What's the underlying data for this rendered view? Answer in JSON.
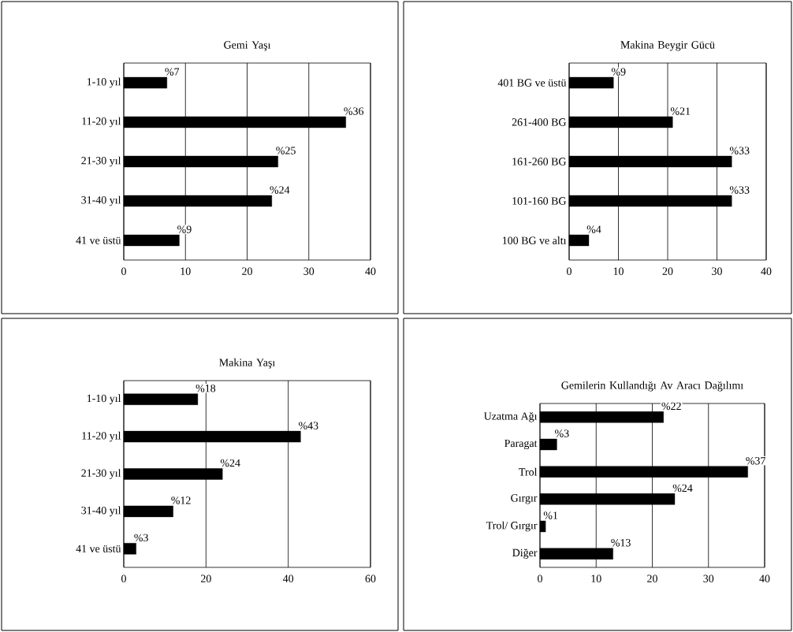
{
  "chart_data": [
    {
      "type": "bar",
      "orientation": "horizontal",
      "title": "Gemi Yaşı",
      "categories": [
        "1-10 yıl",
        "11-20 yıl",
        "21-30 yıl",
        "31-40 yıl",
        "41 ve üstü"
      ],
      "values": [
        7,
        36,
        25,
        24,
        9
      ],
      "value_labels": [
        "%7",
        "%36",
        "%25",
        "%24",
        "%9"
      ],
      "color": "#000000",
      "xlim": [
        0,
        40
      ],
      "xticks": [
        0,
        10,
        20,
        30,
        40
      ],
      "grid": "x"
    },
    {
      "type": "bar",
      "orientation": "horizontal",
      "title": "Makina Beygir Gücü",
      "categories": [
        "401 BG ve üstü",
        "261-400 BG",
        "161-260 BG",
        "101-160 BG",
        "100 BG ve altı"
      ],
      "values": [
        9,
        21,
        33,
        33,
        4
      ],
      "value_labels": [
        "%9",
        "%21",
        "%33",
        "%33",
        "%4"
      ],
      "color": "#000000",
      "xlim": [
        0,
        40
      ],
      "xticks": [
        0,
        10,
        20,
        30,
        40
      ],
      "grid": "x"
    },
    {
      "type": "bar",
      "orientation": "horizontal",
      "title": "Makina Yaşı",
      "categories": [
        "1-10 yıl",
        "11-20 yıl",
        "21-30 yıl",
        "31-40 yıl",
        "41 ve üstü"
      ],
      "values": [
        18,
        43,
        24,
        12,
        3
      ],
      "value_labels": [
        "%18",
        "%43",
        "%24",
        "%12",
        "%3"
      ],
      "color": "#000000",
      "xlim": [
        0,
        60
      ],
      "xticks": [
        0,
        20,
        40,
        60
      ],
      "grid": "x"
    },
    {
      "type": "bar",
      "orientation": "horizontal",
      "title": "Gemilerin Kullandığı Av Aracı Dağılımı",
      "categories": [
        "Uzatma Ağı",
        "Paragat",
        "Trol",
        "Gırgır",
        "Trol/ Gırgır",
        "Diğer"
      ],
      "values": [
        22,
        3,
        37,
        24,
        1,
        13
      ],
      "value_labels": [
        "%22",
        "%3",
        "%37",
        "%24",
        "%1",
        "%13"
      ],
      "color": "#000000",
      "xlim": [
        0,
        40
      ],
      "xticks": [
        0,
        10,
        20,
        30,
        40
      ],
      "grid": "x"
    }
  ]
}
